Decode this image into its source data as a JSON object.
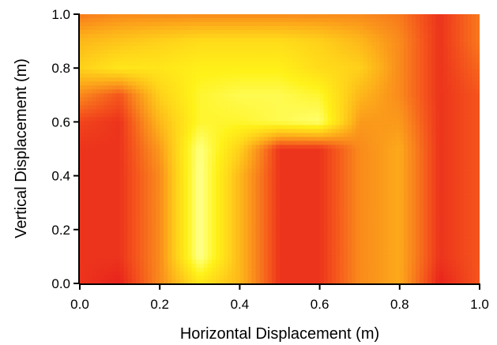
{
  "chart_data": {
    "type": "heatmap",
    "title": "",
    "xlabel": "Horizontal Displacement (m)",
    "ylabel": "Vertical Displacement (m)",
    "xlim": [
      0.0,
      1.0
    ],
    "ylim": [
      0.0,
      1.0
    ],
    "x_ticks": [
      0.0,
      0.2,
      0.4,
      0.6,
      0.8,
      1.0
    ],
    "y_ticks": [
      0.0,
      0.2,
      0.4,
      0.6,
      0.8,
      1.0
    ],
    "x_tick_labels": [
      "0.0",
      "0.2",
      "0.4",
      "0.6",
      "0.8",
      "1.0"
    ],
    "y_tick_labels": [
      "0.0",
      "0.2",
      "0.4",
      "0.6",
      "0.8",
      "1.0"
    ],
    "grid": false,
    "legend": "none",
    "colormap": [
      "#e8231c",
      "#f4531c",
      "#f9861c",
      "#fdb21a",
      "#ffd61a",
      "#fff219",
      "#ffff73",
      "#fffbe8"
    ],
    "x": [
      0.0,
      0.1,
      0.2,
      0.3,
      0.4,
      0.5,
      0.6,
      0.7,
      0.8,
      0.9,
      1.0
    ],
    "y": [
      0.0,
      0.1,
      0.2,
      0.3,
      0.4,
      0.5,
      0.6,
      0.7,
      0.8,
      0.9,
      1.0
    ],
    "z": [
      [
        0.05,
        0.0,
        0.3,
        0.65,
        0.45,
        0.05,
        0.05,
        0.3,
        0.4,
        0.0,
        0.15
      ],
      [
        0.05,
        0.05,
        0.3,
        0.9,
        0.45,
        0.05,
        0.05,
        0.3,
        0.4,
        0.05,
        0.15
      ],
      [
        0.05,
        0.05,
        0.3,
        0.9,
        0.45,
        0.05,
        0.05,
        0.3,
        0.4,
        0.05,
        0.15
      ],
      [
        0.05,
        0.05,
        0.3,
        0.9,
        0.45,
        0.05,
        0.05,
        0.3,
        0.4,
        0.05,
        0.15
      ],
      [
        0.05,
        0.05,
        0.3,
        0.9,
        0.45,
        0.05,
        0.05,
        0.3,
        0.4,
        0.05,
        0.15
      ],
      [
        0.05,
        0.05,
        0.35,
        0.88,
        0.55,
        0.05,
        0.05,
        0.3,
        0.4,
        0.05,
        0.15
      ],
      [
        0.1,
        0.05,
        0.45,
        0.75,
        0.75,
        0.8,
        0.85,
        0.35,
        0.35,
        0.05,
        0.15
      ],
      [
        0.3,
        0.15,
        0.55,
        0.75,
        0.8,
        0.8,
        0.75,
        0.45,
        0.3,
        0.05,
        0.15
      ],
      [
        0.55,
        0.65,
        0.65,
        0.7,
        0.7,
        0.7,
        0.6,
        0.55,
        0.3,
        0.05,
        0.2
      ],
      [
        0.45,
        0.5,
        0.55,
        0.6,
        0.6,
        0.6,
        0.55,
        0.45,
        0.3,
        0.05,
        0.25
      ],
      [
        0.25,
        0.3,
        0.3,
        0.3,
        0.3,
        0.3,
        0.3,
        0.3,
        0.25,
        0.05,
        0.25
      ]
    ]
  }
}
